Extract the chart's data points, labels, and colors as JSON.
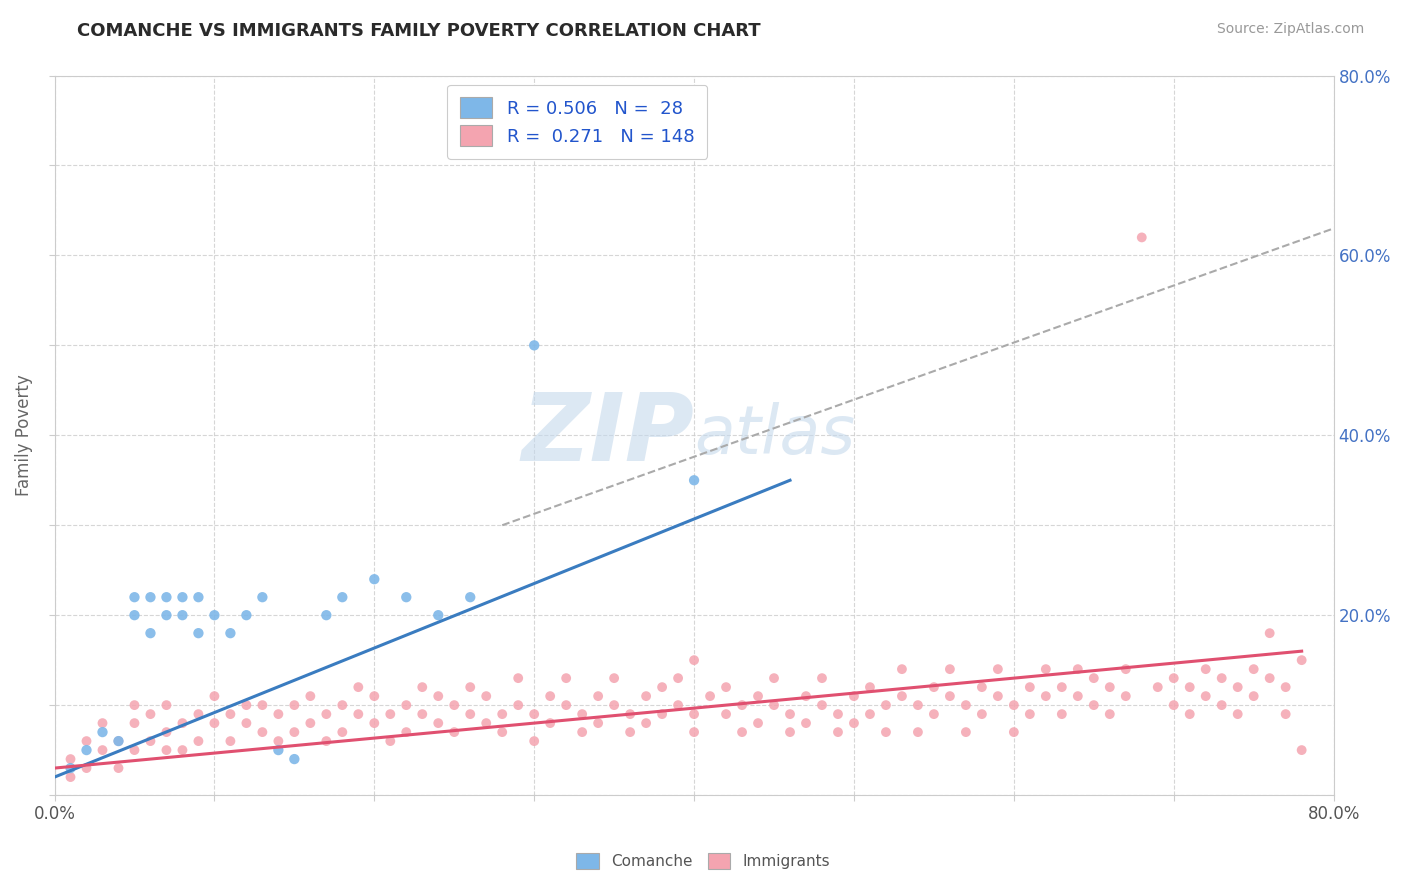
{
  "title": "COMANCHE VS IMMIGRANTS FAMILY POVERTY CORRELATION CHART",
  "source_text": "Source: ZipAtlas.com",
  "ylabel": "Family Poverty",
  "xlim": [
    0.0,
    0.8
  ],
  "ylim": [
    0.0,
    0.8
  ],
  "comanche_color": "#7eb7e8",
  "immigrants_color": "#f4a4b0",
  "comanche_line_color": "#3a7cc0",
  "immigrants_line_color": "#e05070",
  "dash_line_color": "#aaaaaa",
  "background_color": "#ffffff",
  "grid_color": "#cccccc",
  "title_color": "#2a2a2a",
  "watermark_color": "#cde0f0",
  "comanche_scatter": [
    [
      0.01,
      0.03
    ],
    [
      0.02,
      0.05
    ],
    [
      0.03,
      0.07
    ],
    [
      0.04,
      0.06
    ],
    [
      0.05,
      0.2
    ],
    [
      0.05,
      0.22
    ],
    [
      0.06,
      0.18
    ],
    [
      0.06,
      0.22
    ],
    [
      0.07,
      0.2
    ],
    [
      0.07,
      0.22
    ],
    [
      0.08,
      0.2
    ],
    [
      0.08,
      0.22
    ],
    [
      0.09,
      0.18
    ],
    [
      0.09,
      0.22
    ],
    [
      0.1,
      0.2
    ],
    [
      0.11,
      0.18
    ],
    [
      0.12,
      0.2
    ],
    [
      0.13,
      0.22
    ],
    [
      0.14,
      0.05
    ],
    [
      0.15,
      0.04
    ],
    [
      0.17,
      0.2
    ],
    [
      0.18,
      0.22
    ],
    [
      0.2,
      0.24
    ],
    [
      0.22,
      0.22
    ],
    [
      0.24,
      0.2
    ],
    [
      0.26,
      0.22
    ],
    [
      0.3,
      0.5
    ],
    [
      0.4,
      0.35
    ]
  ],
  "immigrants_scatter": [
    [
      0.01,
      0.04
    ],
    [
      0.01,
      0.02
    ],
    [
      0.02,
      0.06
    ],
    [
      0.02,
      0.03
    ],
    [
      0.03,
      0.05
    ],
    [
      0.03,
      0.08
    ],
    [
      0.04,
      0.06
    ],
    [
      0.04,
      0.03
    ],
    [
      0.05,
      0.08
    ],
    [
      0.05,
      0.05
    ],
    [
      0.05,
      0.1
    ],
    [
      0.06,
      0.06
    ],
    [
      0.06,
      0.09
    ],
    [
      0.07,
      0.07
    ],
    [
      0.07,
      0.1
    ],
    [
      0.07,
      0.05
    ],
    [
      0.08,
      0.08
    ],
    [
      0.08,
      0.05
    ],
    [
      0.09,
      0.09
    ],
    [
      0.09,
      0.06
    ],
    [
      0.1,
      0.08
    ],
    [
      0.1,
      0.11
    ],
    [
      0.11,
      0.06
    ],
    [
      0.11,
      0.09
    ],
    [
      0.12,
      0.08
    ],
    [
      0.12,
      0.1
    ],
    [
      0.13,
      0.07
    ],
    [
      0.13,
      0.1
    ],
    [
      0.14,
      0.09
    ],
    [
      0.14,
      0.06
    ],
    [
      0.15,
      0.1
    ],
    [
      0.15,
      0.07
    ],
    [
      0.16,
      0.08
    ],
    [
      0.16,
      0.11
    ],
    [
      0.17,
      0.09
    ],
    [
      0.17,
      0.06
    ],
    [
      0.18,
      0.1
    ],
    [
      0.18,
      0.07
    ],
    [
      0.19,
      0.09
    ],
    [
      0.19,
      0.12
    ],
    [
      0.2,
      0.08
    ],
    [
      0.2,
      0.11
    ],
    [
      0.21,
      0.09
    ],
    [
      0.21,
      0.06
    ],
    [
      0.22,
      0.1
    ],
    [
      0.22,
      0.07
    ],
    [
      0.23,
      0.09
    ],
    [
      0.23,
      0.12
    ],
    [
      0.24,
      0.08
    ],
    [
      0.24,
      0.11
    ],
    [
      0.25,
      0.1
    ],
    [
      0.25,
      0.07
    ],
    [
      0.26,
      0.09
    ],
    [
      0.26,
      0.12
    ],
    [
      0.27,
      0.08
    ],
    [
      0.27,
      0.11
    ],
    [
      0.28,
      0.09
    ],
    [
      0.28,
      0.07
    ],
    [
      0.29,
      0.1
    ],
    [
      0.29,
      0.13
    ],
    [
      0.3,
      0.09
    ],
    [
      0.3,
      0.06
    ],
    [
      0.31,
      0.11
    ],
    [
      0.31,
      0.08
    ],
    [
      0.32,
      0.1
    ],
    [
      0.32,
      0.13
    ],
    [
      0.33,
      0.09
    ],
    [
      0.33,
      0.07
    ],
    [
      0.34,
      0.11
    ],
    [
      0.34,
      0.08
    ],
    [
      0.35,
      0.1
    ],
    [
      0.35,
      0.13
    ],
    [
      0.36,
      0.09
    ],
    [
      0.36,
      0.07
    ],
    [
      0.37,
      0.11
    ],
    [
      0.37,
      0.08
    ],
    [
      0.38,
      0.12
    ],
    [
      0.38,
      0.09
    ],
    [
      0.39,
      0.1
    ],
    [
      0.39,
      0.13
    ],
    [
      0.4,
      0.09
    ],
    [
      0.4,
      0.07
    ],
    [
      0.4,
      0.15
    ],
    [
      0.41,
      0.11
    ],
    [
      0.42,
      0.09
    ],
    [
      0.42,
      0.12
    ],
    [
      0.43,
      0.1
    ],
    [
      0.43,
      0.07
    ],
    [
      0.44,
      0.11
    ],
    [
      0.44,
      0.08
    ],
    [
      0.45,
      0.1
    ],
    [
      0.45,
      0.13
    ],
    [
      0.46,
      0.09
    ],
    [
      0.46,
      0.07
    ],
    [
      0.47,
      0.11
    ],
    [
      0.47,
      0.08
    ],
    [
      0.48,
      0.1
    ],
    [
      0.48,
      0.13
    ],
    [
      0.49,
      0.09
    ],
    [
      0.49,
      0.07
    ],
    [
      0.5,
      0.11
    ],
    [
      0.5,
      0.08
    ],
    [
      0.51,
      0.12
    ],
    [
      0.51,
      0.09
    ],
    [
      0.52,
      0.1
    ],
    [
      0.52,
      0.07
    ],
    [
      0.53,
      0.11
    ],
    [
      0.53,
      0.14
    ],
    [
      0.54,
      0.1
    ],
    [
      0.54,
      0.07
    ],
    [
      0.55,
      0.12
    ],
    [
      0.55,
      0.09
    ],
    [
      0.56,
      0.11
    ],
    [
      0.56,
      0.14
    ],
    [
      0.57,
      0.1
    ],
    [
      0.57,
      0.07
    ],
    [
      0.58,
      0.12
    ],
    [
      0.58,
      0.09
    ],
    [
      0.59,
      0.11
    ],
    [
      0.59,
      0.14
    ],
    [
      0.6,
      0.1
    ],
    [
      0.6,
      0.07
    ],
    [
      0.61,
      0.12
    ],
    [
      0.61,
      0.09
    ],
    [
      0.62,
      0.11
    ],
    [
      0.62,
      0.14
    ],
    [
      0.63,
      0.12
    ],
    [
      0.63,
      0.09
    ],
    [
      0.64,
      0.11
    ],
    [
      0.64,
      0.14
    ],
    [
      0.65,
      0.1
    ],
    [
      0.65,
      0.13
    ],
    [
      0.66,
      0.12
    ],
    [
      0.66,
      0.09
    ],
    [
      0.67,
      0.11
    ],
    [
      0.67,
      0.14
    ],
    [
      0.68,
      0.62
    ],
    [
      0.69,
      0.12
    ],
    [
      0.7,
      0.1
    ],
    [
      0.7,
      0.13
    ],
    [
      0.71,
      0.12
    ],
    [
      0.71,
      0.09
    ],
    [
      0.72,
      0.11
    ],
    [
      0.72,
      0.14
    ],
    [
      0.73,
      0.13
    ],
    [
      0.73,
      0.1
    ],
    [
      0.74,
      0.12
    ],
    [
      0.74,
      0.09
    ],
    [
      0.75,
      0.11
    ],
    [
      0.75,
      0.14
    ],
    [
      0.76,
      0.18
    ],
    [
      0.76,
      0.13
    ],
    [
      0.77,
      0.12
    ],
    [
      0.77,
      0.09
    ],
    [
      0.78,
      0.15
    ],
    [
      0.78,
      0.05
    ]
  ],
  "comanche_trendline": {
    "x_start": 0.0,
    "x_end": 0.46,
    "y_start": 0.02,
    "y_end": 0.35
  },
  "immigrants_trendline": {
    "x_start": 0.0,
    "x_end": 0.78,
    "y_start": 0.03,
    "y_end": 0.16
  },
  "dash_line": {
    "x_start": 0.28,
    "x_end": 0.8,
    "y_start": 0.3,
    "y_end": 0.63
  }
}
